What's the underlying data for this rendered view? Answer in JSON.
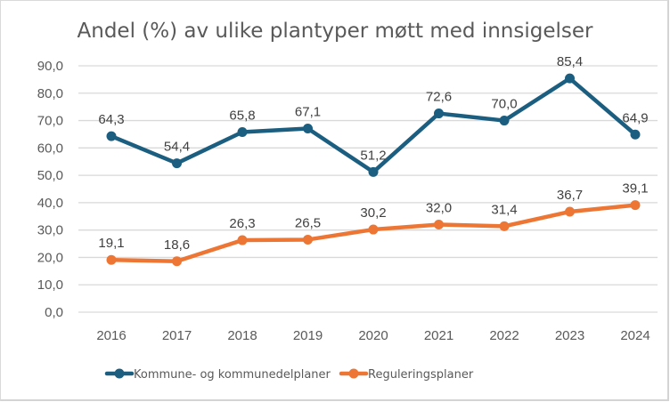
{
  "chart_data": {
    "type": "line",
    "title": "Andel (%) av ulike plantyper møtt med innsigelser",
    "xlabel": "",
    "ylabel": "",
    "categories": [
      "2016",
      "2017",
      "2018",
      "2019",
      "2020",
      "2021",
      "2022",
      "2023",
      "2024"
    ],
    "ylim": [
      0,
      90
    ],
    "yticks": [
      0,
      10,
      20,
      30,
      40,
      50,
      60,
      70,
      80,
      90
    ],
    "ytick_labels": [
      "0,0",
      "10,0",
      "20,0",
      "30,0",
      "40,0",
      "50,0",
      "60,0",
      "70,0",
      "80,0",
      "90,0"
    ],
    "grid": true,
    "legend_position": "bottom",
    "series": [
      {
        "name": "Kommune- og kommunedelplaner",
        "color": "#1b5e80",
        "values": [
          64.3,
          54.4,
          65.8,
          67.1,
          51.2,
          72.6,
          70.0,
          85.4,
          64.9
        ],
        "labels": [
          "64,3",
          "54,4",
          "65,8",
          "67,1",
          "51,2",
          "72,6",
          "70,0",
          "85,4",
          "64,9"
        ]
      },
      {
        "name": "Reguleringsplaner",
        "color": "#ed7634",
        "values": [
          19.1,
          18.6,
          26.3,
          26.5,
          30.2,
          32.0,
          31.4,
          36.7,
          39.1
        ],
        "labels": [
          "19,1",
          "18,6",
          "26,3",
          "26,5",
          "30,2",
          "32,0",
          "31,4",
          "36,7",
          "39,1"
        ]
      }
    ]
  }
}
